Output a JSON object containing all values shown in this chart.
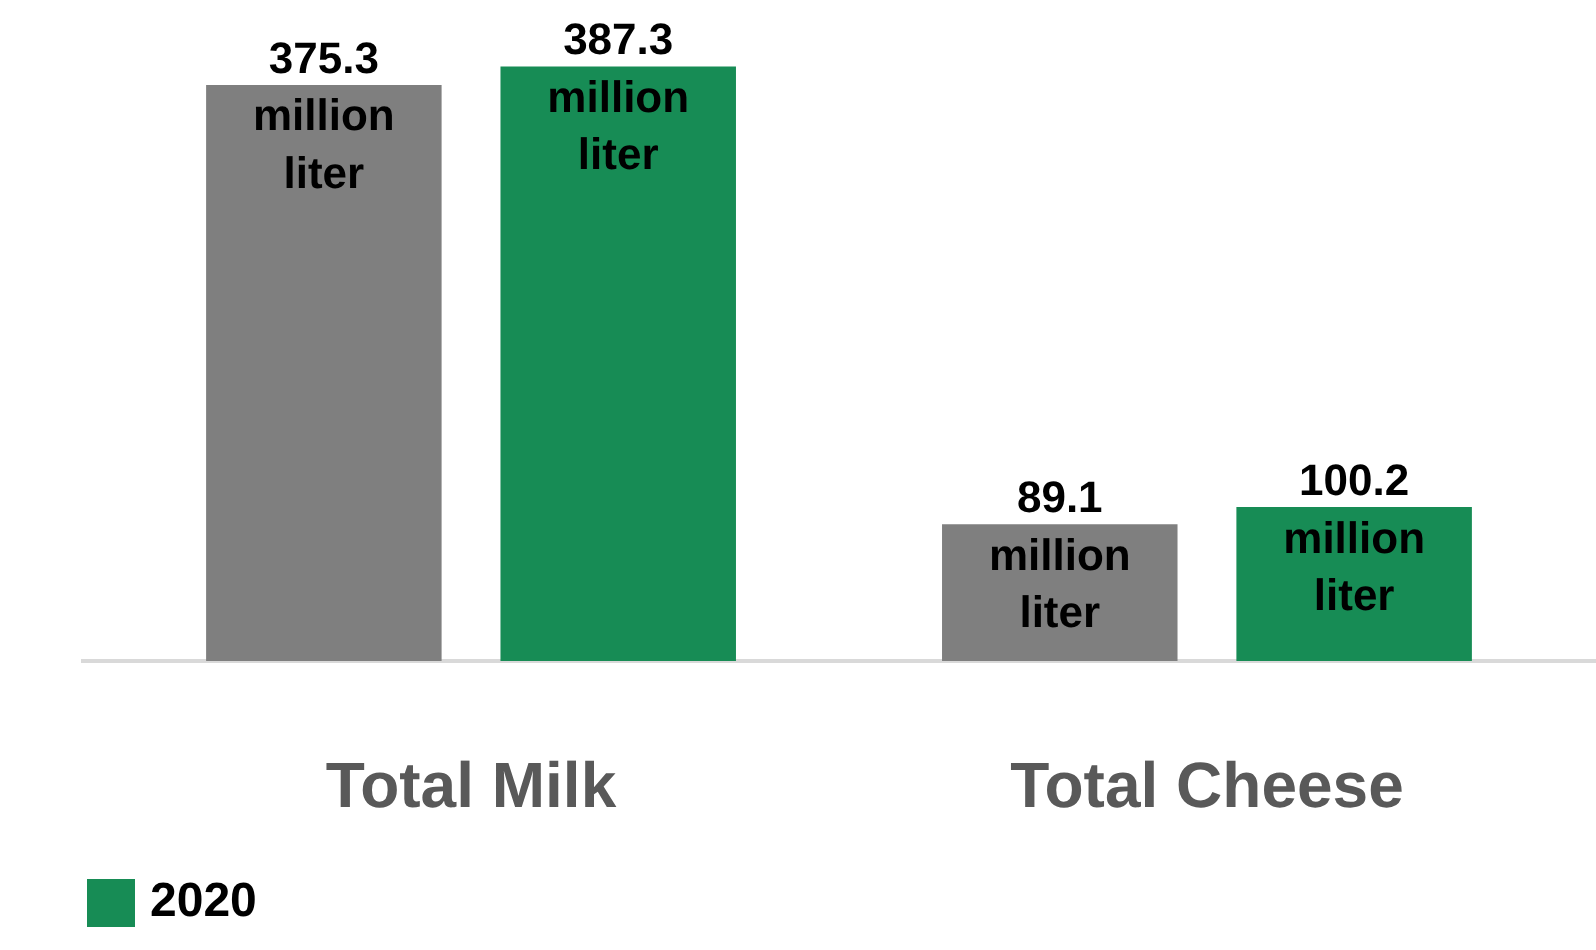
{
  "chart_data": {
    "type": "bar",
    "categories": [
      "Total Milk",
      "Total Cheese"
    ],
    "series": [
      {
        "color": "#7f7f7f",
        "values": [
          375.3,
          89.1
        ],
        "value_labels": [
          "375.3 million liter",
          "89.1 million liter"
        ]
      },
      {
        "name": "2020",
        "color": "#178c55",
        "values": [
          387.3,
          100.2
        ],
        "value_labels": [
          "387.3 million liter",
          "100.2 million liter"
        ]
      }
    ],
    "legend": "bottom left"
  }
}
